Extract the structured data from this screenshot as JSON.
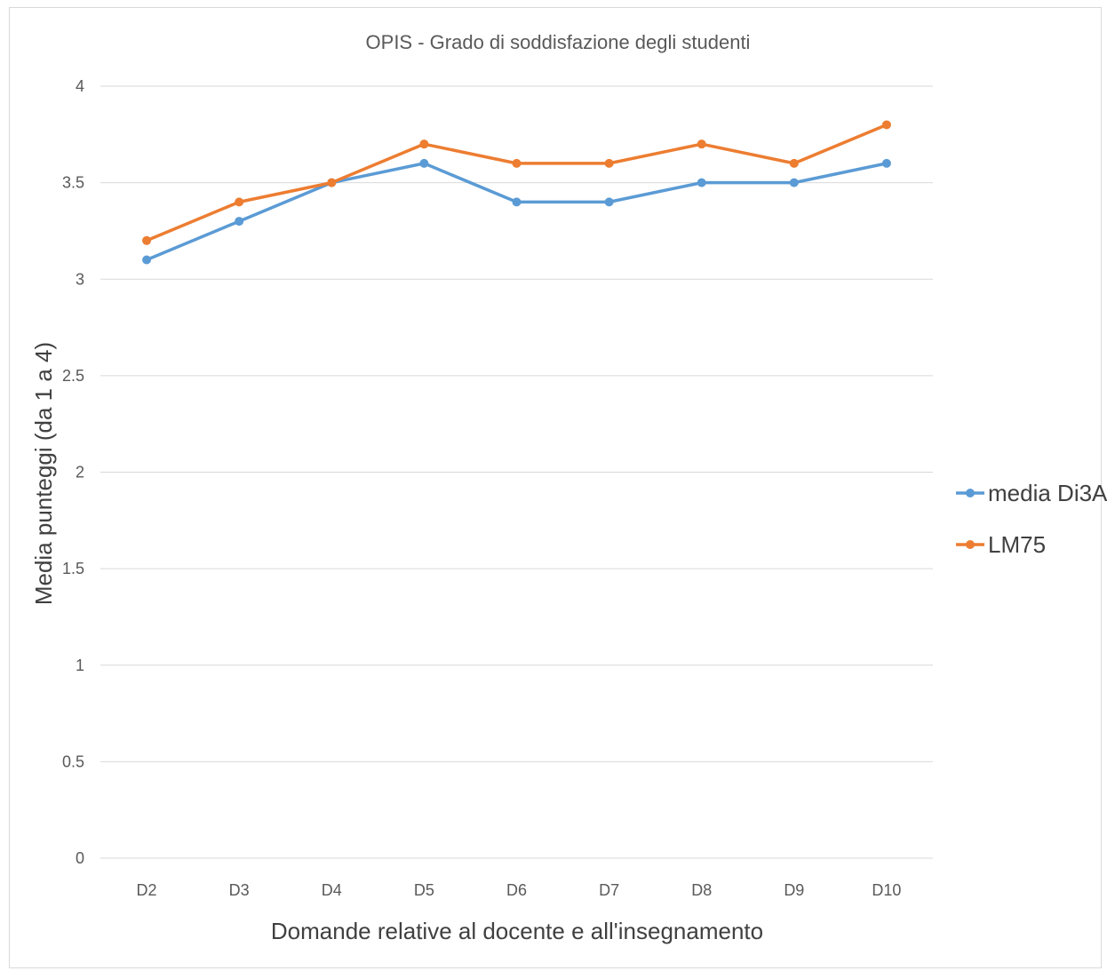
{
  "chart_data": {
    "type": "line",
    "title": "OPIS - Grado di soddisfazione degli studenti",
    "xlabel": "Domande relative al docente e all'insegnamento",
    "ylabel": "Media punteggi (da 1 a 4)",
    "categories": [
      "D2",
      "D3",
      "D4",
      "D5",
      "D6",
      "D7",
      "D8",
      "D9",
      "D10"
    ],
    "ylim": [
      0,
      4
    ],
    "yticks": [
      "0",
      "0.5",
      "1",
      "1.5",
      "2",
      "2.5",
      "3",
      "3.5",
      "4"
    ],
    "grid": true,
    "legend_position": "right",
    "series": [
      {
        "name": "media Di3A",
        "color": "#5b9bd5",
        "values": [
          3.1,
          3.3,
          3.5,
          3.6,
          3.4,
          3.4,
          3.5,
          3.5,
          3.6
        ]
      },
      {
        "name": "LM75",
        "color": "#ed7d31",
        "values": [
          3.2,
          3.4,
          3.5,
          3.7,
          3.6,
          3.6,
          3.7,
          3.6,
          3.8
        ]
      }
    ]
  }
}
